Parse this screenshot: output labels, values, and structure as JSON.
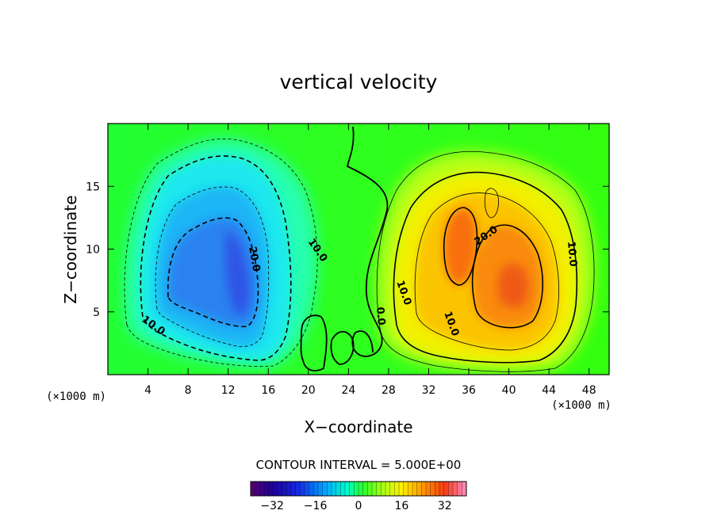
{
  "chart_data": {
    "type": "heatmap",
    "title": "vertical velocity",
    "xlabel": "X−coordinate",
    "ylabel": "Z−coordinate",
    "x_unit_label": "(×1000 m)",
    "z_unit_label": "(×1000 m)",
    "xlim": [
      0,
      50
    ],
    "ylim": [
      0,
      20
    ],
    "x_ticks": [
      4,
      8,
      12,
      16,
      20,
      24,
      28,
      32,
      36,
      40,
      44,
      48
    ],
    "y_ticks": [
      5,
      10,
      15
    ],
    "contour_interval_label": "CONTOUR INTERVAL = 5.000E+00",
    "contour_interval": 5.0,
    "contour_labels": [
      "10.0",
      "20.0",
      "10.0",
      "0.0",
      "10.0",
      "10.0",
      "20.0",
      "10.0"
    ],
    "colorbar": {
      "range": [
        -40,
        40
      ],
      "ticks": [
        -32,
        -16,
        0,
        16,
        32
      ],
      "tick_labels": [
        "−32",
        "−16",
        "0",
        "16",
        "32"
      ]
    },
    "features": [
      {
        "sign": "negative",
        "center_x": 12.5,
        "center_z": 9.5,
        "min_value": -25
      },
      {
        "sign": "positive",
        "center_x": 38,
        "center_z": 8.5,
        "max_value": 28
      }
    ],
    "grid": false
  }
}
